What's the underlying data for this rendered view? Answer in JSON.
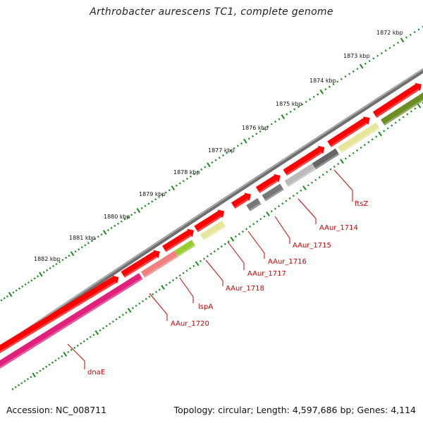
{
  "title": "Arthrobacter aurescens TC1, complete genome",
  "footer": {
    "accession": "Accession: NC_008711",
    "summary": "Topology: circular; Length: 4,597,686 bp; Genes: 4,114"
  },
  "ticks": [
    "1872 kbp",
    "1873 kbp",
    "1874 kbp",
    "1875 kbp",
    "1876 kbp",
    "1877 kbp",
    "1878 kbp",
    "1879 kbp",
    "1880 kbp",
    "1881 kbp",
    "1882 kbp"
  ],
  "genes": [
    "ftsZ",
    "AAur_1714",
    "AAur_1715",
    "AAur_1716",
    "AAur_1717",
    "AAur_1718",
    "lspA",
    "AAur_1720",
    "dnaE"
  ],
  "colors": {
    "backbone": "#808080",
    "cds": "#ff0000",
    "ticks": "#1a8a1a",
    "label": "#cc0000",
    "dnaE": "#e0207a",
    "AAur_1720": "#f08080",
    "lspA": "#99cc33",
    "ftsZ": "#e6e69a",
    "AAur_1718": "#e6e69a",
    "AAur_1716": "#777777",
    "AAur_1715": "#bbbbbb",
    "AAur_1714": "#666666",
    "olive": "#6b8e23"
  }
}
